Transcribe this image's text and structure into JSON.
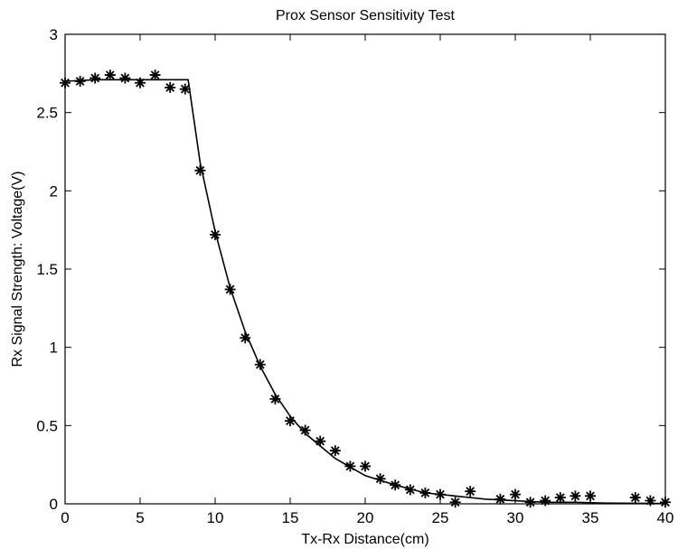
{
  "chart_data": {
    "type": "line",
    "title": "Prox Sensor Sensitivity Test",
    "xlabel": "Tx-Rx Distance(cm)",
    "ylabel": "Rx Signal Strength: Voltage(V)",
    "xlim": [
      0,
      40
    ],
    "ylim": [
      0,
      3
    ],
    "xticks": [
      0,
      5,
      10,
      15,
      20,
      25,
      30,
      35,
      40
    ],
    "yticks": [
      0,
      0.5,
      1,
      1.5,
      2,
      2.5,
      3
    ],
    "xtick_labels": [
      "0",
      "5",
      "10",
      "15",
      "20",
      "25",
      "30",
      "35",
      "40"
    ],
    "ytick_labels": [
      "0",
      "0.5",
      "1",
      "1.5",
      "2",
      "2.5",
      "3"
    ],
    "grid": false,
    "series": [
      {
        "style": "line",
        "color": "#000000",
        "x": [
          0,
          2,
          4,
          6,
          8,
          8.2,
          9,
          10,
          11,
          12,
          13,
          14,
          15,
          16,
          18,
          20,
          22,
          24,
          26,
          28,
          30,
          32,
          34,
          36,
          38,
          40
        ],
        "y": [
          2.7,
          2.71,
          2.71,
          2.71,
          2.71,
          2.71,
          2.18,
          1.74,
          1.38,
          1.1,
          0.88,
          0.7,
          0.56,
          0.45,
          0.29,
          0.18,
          0.12,
          0.07,
          0.05,
          0.03,
          0.02,
          0.01,
          0.01,
          0.005,
          0.003,
          0.002
        ]
      },
      {
        "style": "markers",
        "marker": "*",
        "color": "#000000",
        "x": [
          0,
          1,
          2,
          3,
          4,
          5,
          6,
          7,
          8,
          9,
          10,
          11,
          12,
          13,
          14,
          15,
          16,
          17,
          18,
          19,
          20,
          21,
          22,
          23,
          24,
          25,
          26,
          27,
          29,
          30,
          31,
          32,
          33,
          34,
          35,
          38,
          39,
          40
        ],
        "y": [
          2.69,
          2.7,
          2.72,
          2.74,
          2.72,
          2.69,
          2.74,
          2.66,
          2.65,
          2.13,
          1.72,
          1.37,
          1.06,
          0.89,
          0.67,
          0.53,
          0.47,
          0.4,
          0.34,
          0.24,
          0.24,
          0.16,
          0.12,
          0.09,
          0.07,
          0.06,
          0.01,
          0.08,
          0.03,
          0.06,
          0.01,
          0.02,
          0.04,
          0.05,
          0.05,
          0.04,
          0.02,
          0.01
        ]
      }
    ]
  }
}
